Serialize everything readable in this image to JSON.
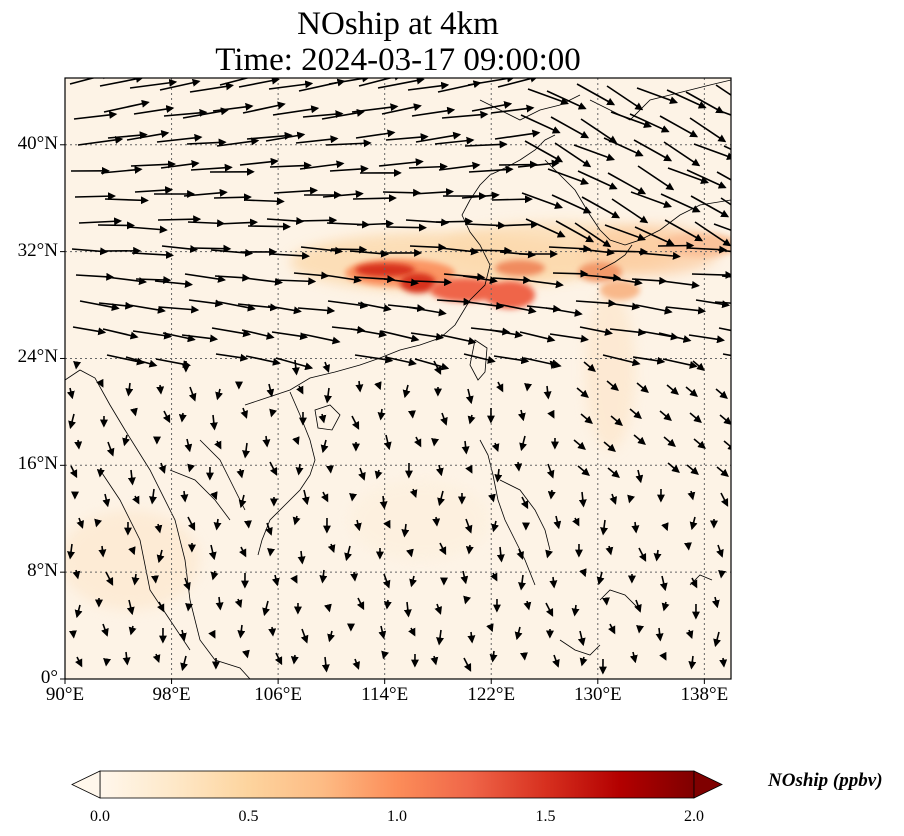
{
  "title": {
    "line1": "NOship at 4km",
    "line2": "Time: 2024-03-17 09:00:00"
  },
  "map": {
    "projection": "PlateCarree",
    "lon_range": [
      90,
      140
    ],
    "lat_range": [
      0,
      45
    ],
    "gridlines": "dotted",
    "background": "#fdf3e6",
    "x_ticks": [
      "90°E",
      "98°E",
      "106°E",
      "114°E",
      "122°E",
      "130°E",
      "138°E"
    ],
    "x_tick_values": [
      90,
      98,
      106,
      114,
      122,
      130,
      138
    ],
    "y_ticks": [
      "0°",
      "8°N",
      "16°N",
      "24°N",
      "32°N",
      "40°N"
    ],
    "y_tick_values": [
      0,
      8,
      16,
      24,
      32,
      40
    ],
    "wind_vectors": "arrows"
  },
  "colorbar": {
    "label": "NOship (ppbv)",
    "ticks": [
      "0.0",
      "0.5",
      "1.0",
      "1.5",
      "2.0"
    ],
    "tick_values": [
      0.0,
      0.5,
      1.0,
      1.5,
      2.0
    ],
    "range": [
      0.0,
      2.0
    ],
    "colormap": "OrRd",
    "colors": [
      "#fff7ec",
      "#fee8c8",
      "#fdd49e",
      "#fdbb84",
      "#fc8d59",
      "#ef6548",
      "#d7301f",
      "#b30000",
      "#7f0000"
    ],
    "extend": "both"
  },
  "high_concentration_regions": [
    {
      "lon": 116,
      "lat": 30.5,
      "level": 1.6
    },
    {
      "lon": 124,
      "lat": 28.8,
      "level": 1.5
    },
    {
      "lon": 131,
      "lat": 30.5,
      "level": 0.9
    },
    {
      "lon": 119,
      "lat": 32.5,
      "level": 0.5
    }
  ]
}
